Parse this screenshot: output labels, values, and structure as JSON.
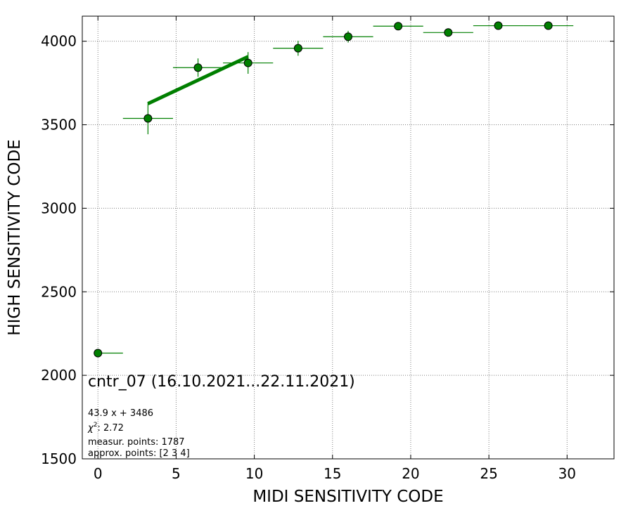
{
  "chart_data": {
    "type": "scatter",
    "title": "cntr_07 (16.10.2021...22.11.2021)",
    "xlabel": "MIDI SENSITIVITY CODE",
    "ylabel": "HIGH SENSITIVITY CODE",
    "xlim": [
      -1,
      33
    ],
    "ylim": [
      1500,
      4150
    ],
    "xticks": [
      0,
      5,
      10,
      15,
      20,
      25,
      30
    ],
    "yticks": [
      1500,
      2000,
      2500,
      3000,
      3500,
      4000
    ],
    "grid": true,
    "points": [
      {
        "x": 0.0,
        "y": 2133,
        "xerr_low": 0.0,
        "xerr_high": 1.6,
        "yerr": 0
      },
      {
        "x": 3.2,
        "y": 3538,
        "xerr_low": 1.6,
        "xerr_high": 1.6,
        "yerr": 95
      },
      {
        "x": 6.4,
        "y": 3842,
        "xerr_low": 1.6,
        "xerr_high": 1.6,
        "yerr": 55
      },
      {
        "x": 9.6,
        "y": 3870,
        "xerr_low": 1.6,
        "xerr_high": 1.6,
        "yerr": 65
      },
      {
        "x": 12.8,
        "y": 3958,
        "xerr_low": 1.6,
        "xerr_high": 1.6,
        "yerr": 45
      },
      {
        "x": 16.0,
        "y": 4027,
        "xerr_low": 1.6,
        "xerr_high": 1.6,
        "yerr": 35
      },
      {
        "x": 19.2,
        "y": 4090,
        "xerr_low": 1.6,
        "xerr_high": 1.6,
        "yerr": 15
      },
      {
        "x": 22.4,
        "y": 4052,
        "xerr_low": 1.6,
        "xerr_high": 1.6,
        "yerr": 15
      },
      {
        "x": 25.6,
        "y": 4093,
        "xerr_low": 1.6,
        "xerr_high": 1.6,
        "yerr": 15
      },
      {
        "x": 28.8,
        "y": 4093,
        "xerr_low": 1.6,
        "xerr_high": 1.6,
        "yerr": 0
      }
    ],
    "fit": {
      "slope": 43.9,
      "intercept": 3486,
      "x_range": [
        3.2,
        9.6
      ]
    },
    "annotations": {
      "fit_label": "43.9 x + 3486",
      "chi2_prefix": "χ",
      "chi2_sup": "2",
      "chi2_value": ": 2.72",
      "measur_points": "measur. points: 1787",
      "approx_points": "approx. points: [2 3 4]"
    },
    "colors": {
      "series": "#007f00",
      "marker_edge": "#000000",
      "grid": "#808080"
    }
  }
}
